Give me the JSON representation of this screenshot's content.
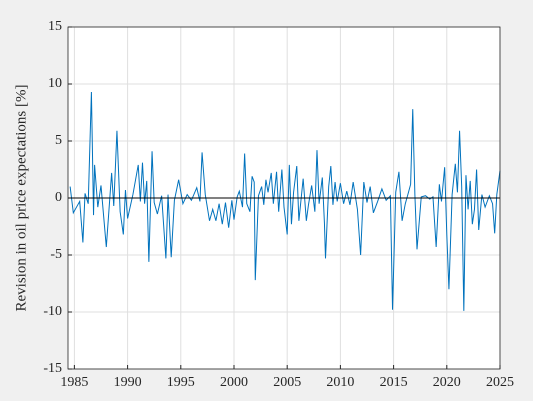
{
  "chart_data": {
    "type": "line",
    "ylabel": "Revision in oil price expectations [%]",
    "x": [
      1984.6,
      1984.9,
      1985.5,
      1985.8,
      1986.0,
      1986.3,
      1986.6,
      1986.8,
      1986.9,
      1987.2,
      1987.5,
      1988.0,
      1988.5,
      1988.7,
      1989.0,
      1989.3,
      1989.6,
      1989.8,
      1990.0,
      1990.5,
      1991.0,
      1991.2,
      1991.4,
      1991.6,
      1991.8,
      1992.0,
      1992.3,
      1992.5,
      1992.8,
      1993.2,
      1993.6,
      1993.8,
      1994.1,
      1994.4,
      1994.8,
      1995.2,
      1995.6,
      1996.0,
      1996.5,
      1996.8,
      1997.0,
      1997.3,
      1997.7,
      1998.0,
      1998.3,
      1998.6,
      1998.9,
      1999.2,
      1999.5,
      1999.8,
      2000.0,
      2000.3,
      2000.5,
      2000.8,
      2001.0,
      2001.2,
      2001.5,
      2001.7,
      2001.9,
      2002.0,
      2002.3,
      2002.6,
      2002.8,
      2003.0,
      2003.2,
      2003.5,
      2003.7,
      2004.0,
      2004.2,
      2004.5,
      2004.7,
      2005.0,
      2005.2,
      2005.4,
      2005.6,
      2005.9,
      2006.1,
      2006.5,
      2006.8,
      2007.0,
      2007.3,
      2007.6,
      2007.8,
      2008.0,
      2008.3,
      2008.5,
      2008.6,
      2008.9,
      2009.1,
      2009.3,
      2009.5,
      2009.7,
      2010.0,
      2010.3,
      2010.6,
      2010.9,
      2011.2,
      2011.6,
      2011.9,
      2012.2,
      2012.5,
      2012.8,
      2013.1,
      2013.5,
      2013.9,
      2014.3,
      2014.7,
      2014.9,
      2015.2,
      2015.5,
      2015.8,
      2016.1,
      2016.4,
      2016.6,
      2016.8,
      2017.0,
      2017.2,
      2017.6,
      2018.0,
      2018.4,
      2018.7,
      2019.0,
      2019.3,
      2019.5,
      2019.8,
      2020.0,
      2020.2,
      2020.5,
      2020.8,
      2021.0,
      2021.2,
      2021.4,
      2021.6,
      2021.8,
      2022.0,
      2022.2,
      2022.4,
      2022.6,
      2022.8,
      2023.0,
      2023.3,
      2023.6,
      2024.0,
      2024.3,
      2024.5,
      2024.7,
      2025.0
    ],
    "series": [
      {
        "color": "#0072bd",
        "values": [
          1.0,
          -1.3,
          -0.3,
          -3.9,
          0.4,
          -0.5,
          9.3,
          -1.5,
          2.9,
          -0.8,
          1.1,
          -4.3,
          2.2,
          -0.7,
          5.9,
          -1.2,
          -3.2,
          0.7,
          -1.8,
          0.3,
          2.9,
          -0.3,
          3.1,
          -0.5,
          1.5,
          -5.6,
          4.1,
          -0.4,
          -1.4,
          0.2,
          -5.3,
          0.3,
          -5.2,
          -0.2,
          1.6,
          -0.5,
          0.3,
          -0.2,
          0.9,
          -0.3,
          4.0,
          0.3,
          -2.0,
          -1.0,
          -2.0,
          -0.5,
          -2.3,
          -0.4,
          -2.6,
          -0.2,
          -1.9,
          0.1,
          0.6,
          -0.8,
          3.9,
          -0.5,
          -1.2,
          1.9,
          1.4,
          -7.2,
          0.2,
          1.0,
          -0.6,
          1.6,
          0.5,
          2.2,
          -0.5,
          2.3,
          -1.2,
          2.5,
          -0.8,
          -3.2,
          2.9,
          -2.3,
          0.5,
          2.8,
          -2.0,
          1.7,
          -2.0,
          -0.6,
          1.1,
          -1.2,
          4.2,
          -0.5,
          1.8,
          -2.2,
          -5.3,
          1.0,
          2.8,
          -0.6,
          1.4,
          -0.3,
          1.3,
          -0.5,
          0.6,
          -0.6,
          1.4,
          -1.0,
          -5.0,
          1.4,
          -0.4,
          1.0,
          -1.3,
          -0.3,
          0.8,
          -0.2,
          0.2,
          -9.8,
          0.5,
          2.3,
          -2.0,
          -0.5,
          0.5,
          1.2,
          7.8,
          0.3,
          -4.5,
          0.1,
          0.2,
          -0.1,
          0.1,
          -4.3,
          1.2,
          -0.3,
          2.7,
          -3.2,
          -8.0,
          0.3,
          3.0,
          0.5,
          5.9,
          1.0,
          -9.9,
          2.0,
          -1.0,
          1.5,
          -2.3,
          -1.0,
          2.5,
          -2.8,
          0.3,
          -0.8,
          0.2,
          -0.5,
          -3.1,
          0.3,
          2.4
        ]
      }
    ],
    "xlim": [
      1984.4,
      2025
    ],
    "xticks": [
      1985,
      1990,
      1995,
      2000,
      2005,
      2010,
      2015,
      2020,
      2025
    ],
    "ylim": [
      -15,
      15
    ],
    "yticks": [
      -15,
      -10,
      -5,
      0,
      5,
      10,
      15
    ],
    "grid": true
  }
}
